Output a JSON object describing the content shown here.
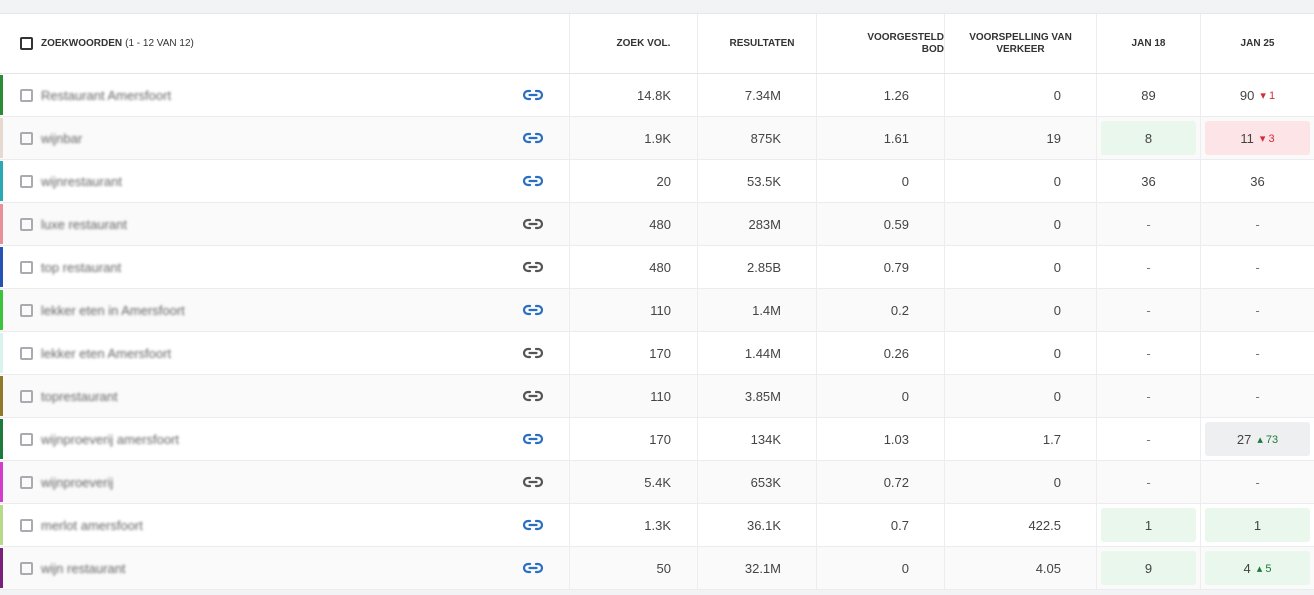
{
  "header": {
    "keyword_title": "ZOEKWOORDEN",
    "keyword_count": "(1 - 12 VAN 12)",
    "search_volume": "ZOEK VOL.",
    "results": "RESULTATEN",
    "suggested_bid": "VOORGESTELD BOD",
    "traffic_forecast": "VOORSPELLING VAN VERKEER",
    "date_1": "JAN 18",
    "date_2": "JAN 25"
  },
  "rows": [
    {
      "keyword": "Restaurant Amersfoort",
      "bar": "#2e8b35",
      "link_active": true,
      "vol": "14.8K",
      "results": "7.34M",
      "bid": "1.26",
      "forecast": "0",
      "j18": "89",
      "j18_bg": "",
      "j25": "90",
      "j25_bg": "",
      "j25_delta": "1",
      "j25_dir": "down"
    },
    {
      "keyword": "wijnbar",
      "bar": "#e6d9d0",
      "link_active": true,
      "vol": "1.9K",
      "results": "875K",
      "bid": "1.61",
      "forecast": "19",
      "j18": "8",
      "j18_bg": "good",
      "j25": "11",
      "j25_bg": "bad",
      "j25_delta": "3",
      "j25_dir": "down"
    },
    {
      "keyword": "wijnrestaurant",
      "bar": "#2aa9b5",
      "link_active": true,
      "vol": "20",
      "results": "53.5K",
      "bid": "0",
      "forecast": "0",
      "j18": "36",
      "j18_bg": "",
      "j25": "36",
      "j25_bg": "",
      "j25_delta": "",
      "j25_dir": ""
    },
    {
      "keyword": "luxe restaurant",
      "bar": "#e98f9a",
      "link_active": false,
      "vol": "480",
      "results": "283M",
      "bid": "0.59",
      "forecast": "0",
      "j18": "-",
      "j18_bg": "",
      "j25": "-",
      "j25_bg": "",
      "j25_delta": "",
      "j25_dir": ""
    },
    {
      "keyword": "top restaurant",
      "bar": "#2452b5",
      "link_active": false,
      "vol": "480",
      "results": "2.85B",
      "bid": "0.79",
      "forecast": "0",
      "j18": "-",
      "j18_bg": "",
      "j25": "-",
      "j25_bg": "",
      "j25_delta": "",
      "j25_dir": ""
    },
    {
      "keyword": "lekker eten in Amersfoort",
      "bar": "#3cc43c",
      "link_active": true,
      "vol": "110",
      "results": "1.4M",
      "bid": "0.2",
      "forecast": "0",
      "j18": "-",
      "j18_bg": "",
      "j25": "-",
      "j25_bg": "",
      "j25_delta": "",
      "j25_dir": ""
    },
    {
      "keyword": "lekker eten Amersfoort",
      "bar": "#d7f3ec",
      "link_active": false,
      "vol": "170",
      "results": "1.44M",
      "bid": "0.26",
      "forecast": "0",
      "j18": "-",
      "j18_bg": "",
      "j25": "-",
      "j25_bg": "",
      "j25_delta": "",
      "j25_dir": ""
    },
    {
      "keyword": "toprestaurant",
      "bar": "#8e7a2a",
      "link_active": false,
      "vol": "110",
      "results": "3.85M",
      "bid": "0",
      "forecast": "0",
      "j18": "-",
      "j18_bg": "",
      "j25": "-",
      "j25_bg": "",
      "j25_delta": "",
      "j25_dir": ""
    },
    {
      "keyword": "wijnproeverij amersfoort",
      "bar": "#1d7a3a",
      "link_active": true,
      "vol": "170",
      "results": "134K",
      "bid": "1.03",
      "forecast": "1.7",
      "j18": "-",
      "j18_bg": "",
      "j25": "27",
      "j25_bg": "neutral",
      "j25_delta": "73",
      "j25_dir": "up"
    },
    {
      "keyword": "wijnproeverij",
      "bar": "#d43dcc",
      "link_active": false,
      "vol": "5.4K",
      "results": "653K",
      "bid": "0.72",
      "forecast": "0",
      "j18": "-",
      "j18_bg": "",
      "j25": "-",
      "j25_bg": "",
      "j25_delta": "",
      "j25_dir": ""
    },
    {
      "keyword": "merlot amersfoort",
      "bar": "#b9d98a",
      "link_active": true,
      "vol": "1.3K",
      "results": "36.1K",
      "bid": "0.7",
      "forecast": "422.5",
      "j18": "1",
      "j18_bg": "good",
      "j25": "1",
      "j25_bg": "good",
      "j25_delta": "",
      "j25_dir": ""
    },
    {
      "keyword": "wijn restaurant",
      "bar": "#7a1f7a",
      "link_active": true,
      "vol": "50",
      "results": "32.1M",
      "bid": "0",
      "forecast": "4.05",
      "j18": "9",
      "j18_bg": "good",
      "j25": "4",
      "j25_bg": "good",
      "j25_delta": "5",
      "j25_dir": "up"
    }
  ],
  "colors": {
    "link_active": "#2a6fc0",
    "link_inactive": "#555555",
    "good_bg": "#e9f7ec",
    "bad_bg": "#fde4e6",
    "up": "#1e7a3c",
    "down": "#d12c3a"
  }
}
